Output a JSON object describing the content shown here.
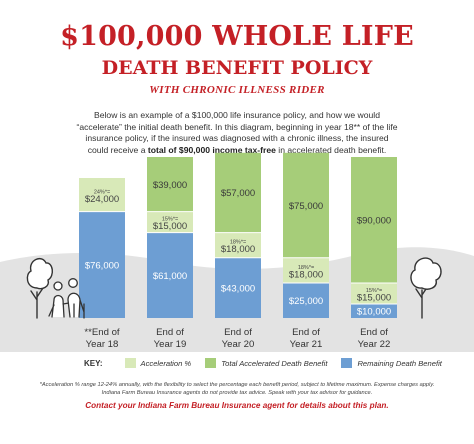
{
  "header": {
    "title_line1": "$100,000 WHOLE LIFE",
    "title_line2": "DEATH BENEFIT POLICY",
    "subtitle": "WITH CHRONIC ILLNESS RIDER"
  },
  "intro": {
    "text_before": "Below is an example of a $100,000 life insurance policy, and how we would “accelerate” the initial death benefit. In this diagram, beginning in year 18** of the life insurance policy, if the insured was diagnosed with a chronic illness, the insured could receive a ",
    "text_bold": "total of $90,000 income tax-free",
    "text_after": " in accelerated death benefit."
  },
  "colors": {
    "title_red": "#c42026",
    "acceleration": "#d8e9b8",
    "accelerated_benefit": "#a6cd79",
    "remaining_benefit": "#6d9ed3",
    "ground": "#e3e3e3"
  },
  "chart_data": {
    "type": "bar",
    "stacked": true,
    "categories": [
      "**End of\nYear 18",
      "End of\nYear 19",
      "End of\nYear 20",
      "End of\nYear 21",
      "End of\nYear 22"
    ],
    "total": 100000,
    "series": [
      {
        "name": "Remaining Death Benefit",
        "values": [
          76000,
          61000,
          43000,
          25000,
          10000
        ],
        "labels": [
          "$76,000",
          "$61,000",
          "$43,000",
          "$25,000",
          "$10,000"
        ]
      },
      {
        "name": "Acceleration %",
        "values": [
          24000,
          15000,
          18000,
          18000,
          15000
        ],
        "labels": [
          "$24,000",
          "$15,000",
          "$18,000",
          "$18,000",
          "$15,000"
        ],
        "pct_labels": [
          "24%*=",
          "15%*=",
          "18%*=",
          "18%*=",
          "15%*="
        ]
      },
      {
        "name": "Total Accelerated Death Benefit",
        "values": [
          0,
          39000,
          57000,
          75000,
          90000
        ],
        "labels": [
          "",
          "$39,000",
          "$57,000",
          "$75,000",
          "$90,000"
        ]
      }
    ]
  },
  "key": {
    "label": "KEY:",
    "items": [
      "Acceleration %",
      "Total Accelerated Death Benefit",
      "Remaining Death Benefit"
    ]
  },
  "footnote": {
    "line1": "*Acceleration % range 12-24% annually, with the flexibility to select the percentage each benefit period, subject to lifetime maximum. Expense charges apply.",
    "line2": "Indiana Farm Bureau Insurance agents do not provide tax advice. Speak with your tax advisor for guidance."
  },
  "contact": "Contact your Indiana Farm Bureau Insurance agent for details about this plan."
}
